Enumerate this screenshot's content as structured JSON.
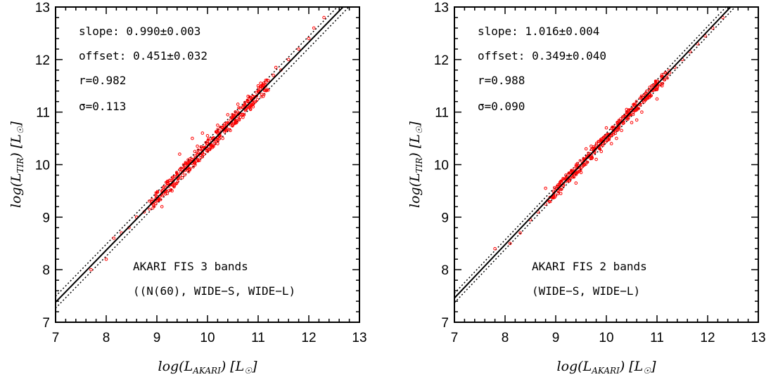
{
  "chart_data": [
    {
      "type": "scatter",
      "xlabel": "log(L_AKARI) [L_sun]",
      "ylabel": "log(L_TIR) [L_sun]",
      "xlim": [
        7,
        13
      ],
      "ylim": [
        7,
        13
      ],
      "xticks": [
        "7",
        "8",
        "9",
        "10",
        "11",
        "12",
        "13"
      ],
      "yticks": [
        "7",
        "8",
        "9",
        "10",
        "11",
        "12",
        "13"
      ],
      "fit_line": {
        "slope": 0.99,
        "offset": 0.451
      },
      "sigma_lines": 0.113,
      "point_color": "#ff0000",
      "stats": [
        "slope:  0.990±0.003",
        "offset:  0.451±0.032",
        "r=0.982",
        "σ=0.113"
      ],
      "annotations": [
        "AKARI FIS 3 bands",
        "((N(60), WIDE−S, WIDE−L)"
      ],
      "series": [
        {
          "x": [
            7.7,
            8.0,
            8.15,
            8.3,
            8.45,
            8.6,
            8.75,
            8.9,
            9.0,
            9.1,
            9.2,
            9.3,
            9.4,
            9.5,
            9.6,
            9.7,
            9.8,
            9.9,
            10.0,
            10.1,
            10.2,
            10.3,
            10.4,
            10.5,
            10.6,
            10.7,
            10.8,
            10.9,
            11.0,
            11.1,
            11.2,
            11.3,
            11.45,
            11.6,
            11.8,
            12.0,
            12.1,
            12.3,
            9.1,
            9.3,
            9.5,
            9.65,
            9.8,
            9.9,
            10.0,
            10.1,
            10.2,
            10.3,
            10.4,
            10.5,
            10.6,
            10.7,
            10.8,
            10.9,
            11.0,
            11.1,
            9.45,
            9.7,
            9.9,
            10.2,
            10.45,
            10.7,
            8.6,
            9.2,
            9.55,
            9.75,
            10.05,
            10.25,
            10.55,
            10.85,
            11.05,
            11.35
          ],
          "y": [
            8.0,
            8.2,
            8.6,
            8.7,
            8.8,
            9.0,
            9.1,
            9.3,
            9.4,
            9.5,
            9.6,
            9.7,
            9.8,
            9.9,
            10.0,
            10.1,
            10.2,
            10.3,
            10.4,
            10.5,
            10.6,
            10.7,
            10.8,
            10.9,
            11.0,
            11.1,
            11.2,
            11.3,
            11.4,
            11.5,
            11.6,
            11.7,
            11.8,
            12.0,
            12.2,
            12.4,
            12.6,
            12.8,
            9.2,
            9.5,
            9.75,
            9.9,
            10.35,
            10.15,
            10.55,
            10.35,
            10.75,
            10.5,
            10.95,
            10.75,
            11.15,
            10.95,
            11.3,
            11.1,
            11.5,
            11.3,
            10.2,
            10.5,
            10.6,
            10.4,
            10.65,
            10.9,
            9.0,
            9.6,
            9.95,
            10.25,
            10.3,
            10.55,
            10.8,
            11.05,
            11.55,
            11.85
          ]
        }
      ]
    },
    {
      "type": "scatter",
      "xlabel": "log(L_AKARI) [L_sun]",
      "ylabel": "log(L_TIR) [L_sun]",
      "xlim": [
        7,
        13
      ],
      "ylim": [
        7,
        13
      ],
      "xticks": [
        "7",
        "8",
        "9",
        "10",
        "11",
        "12",
        "13"
      ],
      "yticks": [
        "7",
        "8",
        "9",
        "10",
        "11",
        "12",
        "13"
      ],
      "fit_line": {
        "slope": 1.016,
        "offset": 0.349
      },
      "sigma_lines": 0.09,
      "point_color": "#ff0000",
      "stats": [
        "slope:  1.016±0.004",
        "offset:  0.349±0.040",
        "r=0.988",
        "σ=0.090"
      ],
      "annotations": [
        "AKARI FIS 2 bands",
        "(WIDE−S, WIDE−L)"
      ],
      "series": [
        {
          "x": [
            7.8,
            8.1,
            8.3,
            8.5,
            8.65,
            8.8,
            8.95,
            9.05,
            9.15,
            9.25,
            9.35,
            9.45,
            9.55,
            9.65,
            9.75,
            9.85,
            9.95,
            10.05,
            10.15,
            10.25,
            10.35,
            10.45,
            10.55,
            10.65,
            10.75,
            10.85,
            10.95,
            11.05,
            11.15,
            11.25,
            11.35,
            11.5,
            11.65,
            11.8,
            11.95,
            12.1,
            12.3,
            9.2,
            9.4,
            9.6,
            9.8,
            10.0,
            10.2,
            10.4,
            10.6,
            10.8,
            11.0,
            9.5,
            9.9,
            10.3,
            10.7,
            11.1,
            8.8,
            9.1,
            9.7,
            10.1,
            10.5,
            10.9
          ],
          "y": [
            8.4,
            8.5,
            8.7,
            8.95,
            9.1,
            9.25,
            9.4,
            9.5,
            9.6,
            9.75,
            9.85,
            9.95,
            10.05,
            10.15,
            10.25,
            10.35,
            10.45,
            10.55,
            10.65,
            10.75,
            10.85,
            10.95,
            11.05,
            11.15,
            11.25,
            11.35,
            11.45,
            11.55,
            11.65,
            11.75,
            11.85,
            12.0,
            12.15,
            12.3,
            12.45,
            12.6,
            12.8,
            9.8,
            9.65,
            10.3,
            10.1,
            10.7,
            10.5,
            11.05,
            10.85,
            11.4,
            11.25,
            9.85,
            10.25,
            10.65,
            11.0,
            11.5,
            9.55,
            9.45,
            10.35,
            10.4,
            10.8,
            11.5
          ]
        }
      ]
    }
  ]
}
